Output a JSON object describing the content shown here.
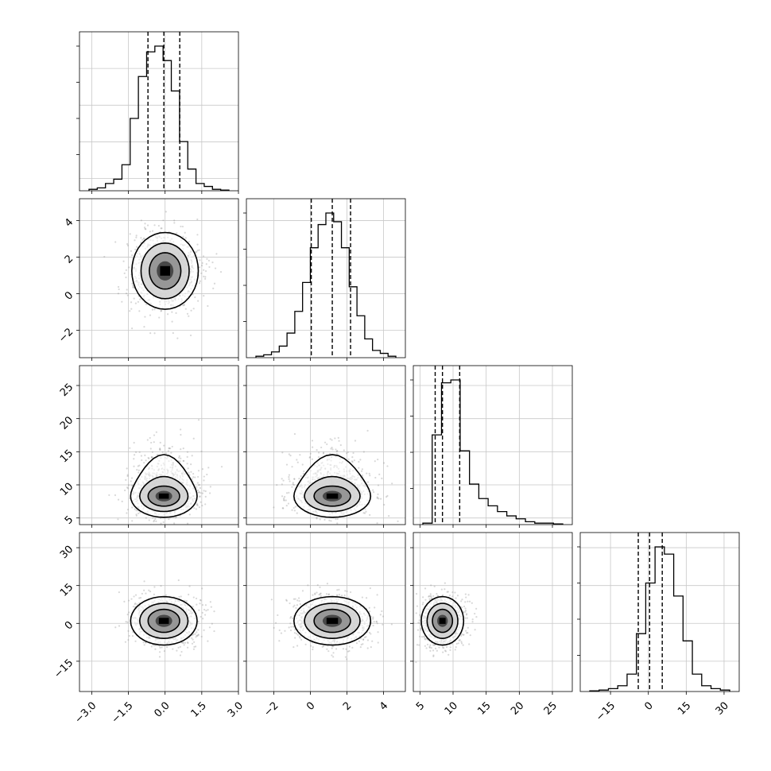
{
  "colors": {
    "line": "#000000",
    "grid": "#c8c8c8",
    "scatter": "#909090",
    "background": "#ffffff"
  },
  "chart_data": {
    "type": "corner",
    "grid": true,
    "parameters": [
      {
        "range": [
          -3.5,
          3.0
        ],
        "ticks": [
          -3.0,
          -1.5,
          0.0,
          1.5,
          3.0
        ],
        "tick_labels": [
          "−3.0",
          "−1.5",
          "0.0",
          "1.5",
          "3.0"
        ],
        "quantiles": [
          -0.7,
          -0.05,
          0.6
        ]
      },
      {
        "range": [
          -3.5,
          5.2
        ],
        "ticks": [
          -2,
          0,
          2,
          4
        ],
        "tick_labels": [
          "−2",
          "0",
          "2",
          "4"
        ],
        "quantiles": [
          0.05,
          1.2,
          2.2
        ]
      },
      {
        "range": [
          4,
          28
        ],
        "ticks": [
          5,
          10,
          15,
          20,
          25
        ],
        "tick_labels": [
          "5",
          "10",
          "15",
          "20",
          "25"
        ],
        "quantiles": [
          7.3,
          8.4,
          11.0
        ]
      },
      {
        "range": [
          -27,
          36
        ],
        "ticks": [
          -15,
          0,
          15,
          30
        ],
        "tick_labels": [
          "−15",
          "0",
          "15",
          "30"
        ],
        "quantiles": [
          -4.0,
          0.5,
          5.5
        ]
      }
    ],
    "histograms": [
      [
        0.01,
        0.02,
        0.05,
        0.08,
        0.18,
        0.5,
        0.79,
        0.96,
        1.0,
        0.9,
        0.69,
        0.34,
        0.15,
        0.05,
        0.03,
        0.01,
        0.005
      ],
      [
        0.01,
        0.02,
        0.04,
        0.08,
        0.17,
        0.32,
        0.52,
        0.76,
        0.92,
        1.0,
        0.94,
        0.76,
        0.49,
        0.29,
        0.13,
        0.05,
        0.03,
        0.01
      ],
      [
        0.01,
        0.62,
        0.98,
        1.0,
        0.51,
        0.28,
        0.18,
        0.13,
        0.09,
        0.06,
        0.04,
        0.02,
        0.01,
        0.01,
        0.005
      ],
      [
        0.005,
        0.01,
        0.02,
        0.04,
        0.12,
        0.4,
        0.75,
        1.0,
        0.95,
        0.66,
        0.35,
        0.12,
        0.04,
        0.02,
        0.01
      ]
    ],
    "contour_stats": [
      {
        "row": 1,
        "col": 0,
        "center": [
          0.0,
          1.25
        ],
        "sd": [
          0.68,
          1.05
        ],
        "skew_up": 0.0
      },
      {
        "row": 2,
        "col": 0,
        "center": [
          -0.05,
          8.3
        ],
        "sd": [
          0.68,
          1.6
        ],
        "skew_up": 2.6
      },
      {
        "row": 2,
        "col": 1,
        "center": [
          1.2,
          8.3
        ],
        "sd": [
          1.05,
          1.6
        ],
        "skew_up": 2.6
      },
      {
        "row": 3,
        "col": 0,
        "center": [
          -0.05,
          1.0
        ],
        "sd": [
          0.68,
          4.8
        ],
        "skew_up": 0.0
      },
      {
        "row": 3,
        "col": 1,
        "center": [
          1.2,
          1.0
        ],
        "sd": [
          1.05,
          4.8
        ],
        "skew_up": 0.0
      },
      {
        "row": 3,
        "col": 2,
        "center": [
          8.4,
          1.0
        ],
        "sd": [
          1.6,
          4.8
        ],
        "skew_up": 0.0
      }
    ]
  }
}
